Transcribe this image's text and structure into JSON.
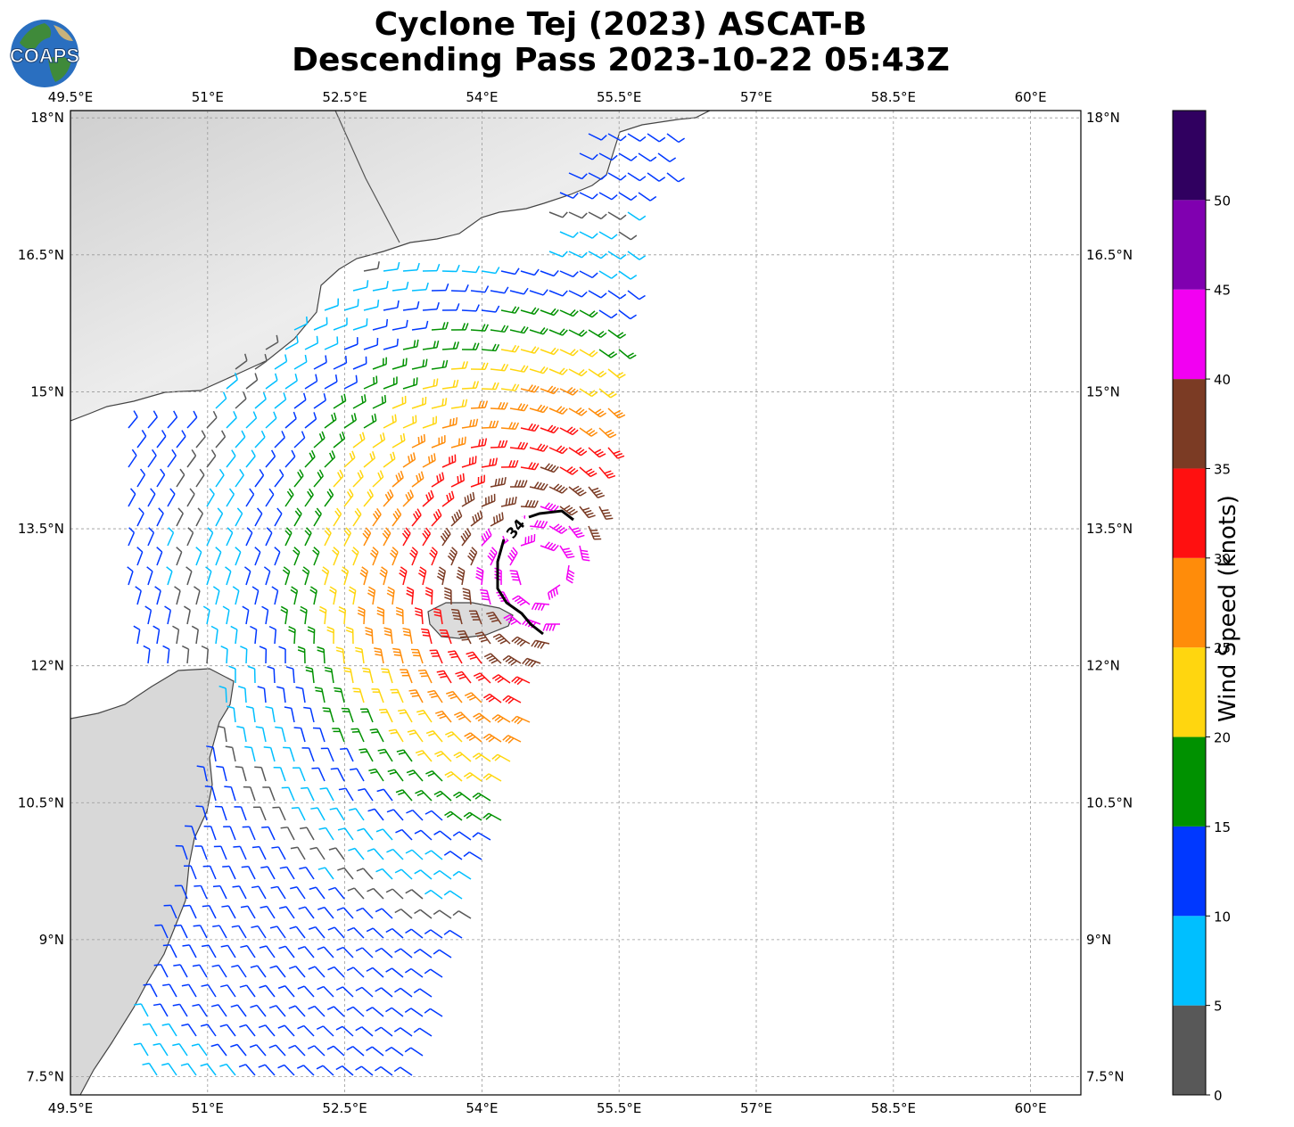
{
  "title": {
    "line1": "Cyclone Tej (2023) ASCAT-B",
    "line2": "Descending Pass 2023-10-22 05:43Z"
  },
  "logo": {
    "text": "COAPS",
    "icon": "globe-icon"
  },
  "map": {
    "lon_ticks": [
      "49.5°E",
      "51°E",
      "52.5°E",
      "54°E",
      "55.5°E",
      "57°E",
      "58.5°E",
      "60°E"
    ],
    "lat_ticks": [
      "18°N",
      "16.5°N",
      "15°N",
      "13.5°N",
      "12°N",
      "10.5°N",
      "9°N",
      "7.5°N"
    ],
    "contour_label": "34",
    "land_color": "#d9d9d9",
    "coast_color": "#444444"
  },
  "colorbar": {
    "title": "Wind Speed (knots)",
    "ticks": [
      "0",
      "5",
      "10",
      "15",
      "20",
      "25",
      "30",
      "35",
      "40",
      "45",
      "50"
    ],
    "bins": [
      {
        "from": 0,
        "to": 5,
        "color": "#585858"
      },
      {
        "from": 5,
        "to": 10,
        "color": "#00bfff"
      },
      {
        "from": 10,
        "to": 15,
        "color": "#0038ff"
      },
      {
        "from": 15,
        "to": 20,
        "color": "#009100"
      },
      {
        "from": 20,
        "to": 25,
        "color": "#ffd60f"
      },
      {
        "from": 25,
        "to": 30,
        "color": "#ff8c0a"
      },
      {
        "from": 30,
        "to": 35,
        "color": "#ff1010"
      },
      {
        "from": 35,
        "to": 40,
        "color": "#7b3b24"
      },
      {
        "from": 40,
        "to": 45,
        "color": "#f200f2"
      },
      {
        "from": 45,
        "to": 50,
        "color": "#8000b0"
      },
      {
        "from": 50,
        "to": 55,
        "color": "#300060"
      }
    ]
  }
}
